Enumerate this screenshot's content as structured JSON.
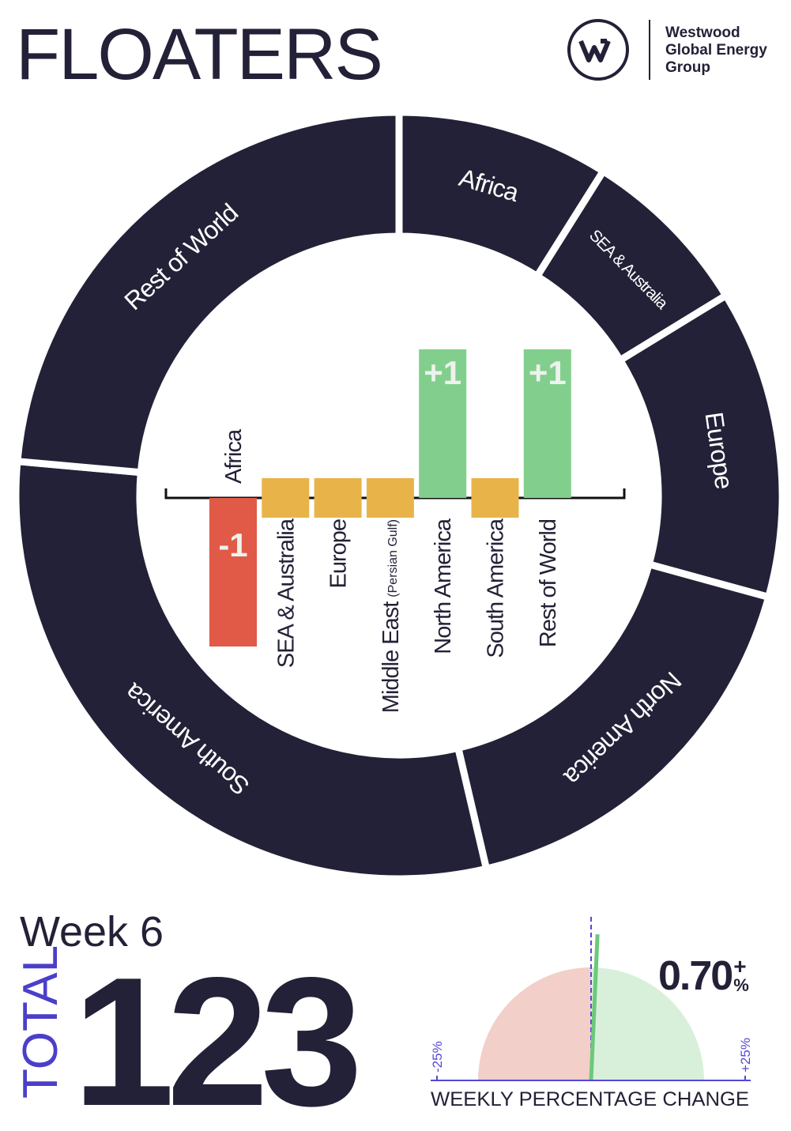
{
  "header": {
    "title": "FLOATERS",
    "brand": [
      "Westwood",
      "Global Energy",
      "Group"
    ]
  },
  "chart_data": [
    {
      "type": "donut",
      "categories": [
        "Africa",
        "SEA & Australia",
        "Europe",
        "North America",
        "South America",
        "Rest of World"
      ],
      "values": [
        11,
        9,
        16,
        21,
        37,
        29
      ],
      "color": "#232137"
    },
    {
      "type": "bar",
      "categories": [
        "Africa",
        "SEA & Australia",
        "Europe",
        "Middle East",
        "North America",
        "South America",
        "Rest of World"
      ],
      "category_notes": [
        null,
        null,
        null,
        "(Persian Gulf)",
        null,
        null,
        null
      ],
      "values": [
        -1,
        0,
        0,
        0,
        1,
        0,
        1
      ],
      "value_labels": [
        "-1",
        null,
        null,
        null,
        "+1",
        null,
        "+1"
      ],
      "colors": {
        "negative": "#e05a47",
        "zero": "#e8b44a",
        "positive": "#82cf8d"
      },
      "ylim": [
        -1,
        1
      ]
    },
    {
      "type": "gauge",
      "value": 0.7,
      "value_label": "0.70",
      "sign": "+",
      "unit": "%",
      "xlim": [
        -25,
        25
      ],
      "xticks": [
        {
          "value": -25,
          "label": "-25%"
        },
        {
          "value": 25,
          "label": "+25%"
        }
      ],
      "label": "WEEKLY PERCENTAGE CHANGE",
      "colors": {
        "negative": "#f2cfc8",
        "positive": "#d8f0da",
        "needle": "#6cc97a",
        "axis": "#5547d6"
      }
    }
  ],
  "summary": {
    "week": "Week 6",
    "total_label": "TOTAL",
    "total": 123
  }
}
